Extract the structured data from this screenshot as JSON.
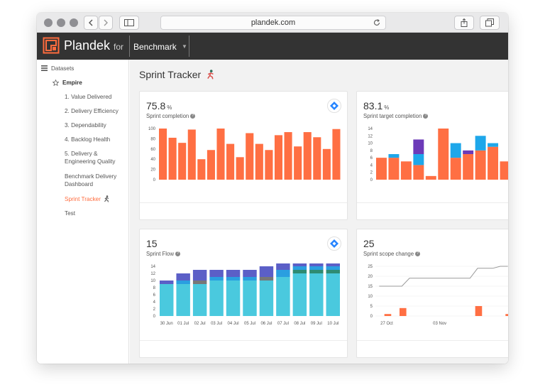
{
  "browser": {
    "url": "plandek.com"
  },
  "app": {
    "brand": "Plandek",
    "for": "for",
    "workspace": "Benchmark"
  },
  "sidebar": {
    "datasets_label": "Datasets",
    "group_label": "Empire",
    "items": [
      {
        "label": "1. Value Delivered",
        "active": false
      },
      {
        "label": "2. Delivery Efficiency",
        "active": false
      },
      {
        "label": "3. Dependability",
        "active": false
      },
      {
        "label": "4. Backlog Health",
        "active": false
      },
      {
        "label_line1": "5. Delivery &",
        "label_line2": "Engineering Quality",
        "active": false
      },
      {
        "label_line1": "Benchmark Delivery",
        "label_line2": "Dashboard",
        "active": false
      },
      {
        "label": "Sprint Tracker",
        "active": true
      },
      {
        "label": "Test",
        "active": false
      }
    ]
  },
  "page": {
    "title": "Sprint Tracker"
  },
  "colors": {
    "accent": "#ff6b3d",
    "bar": "#ff6f43",
    "sprint_flow_main": "#4ac9de",
    "sprint_flow_top": "#5b5fc7",
    "sprint_flow_mid": "#2a9fe0",
    "sprint_flow_green": "#2e8b72",
    "sprint_flow_gray": "#777777",
    "purple": "#6c3ab8",
    "blue": "#1ea7ea"
  },
  "cards": {
    "sprint_completion": {
      "value": "75.8",
      "unit": "%",
      "label": "Sprint completion"
    },
    "sprint_target": {
      "value": "83.1",
      "unit": "%",
      "label": "Sprint target completion"
    },
    "sprint_flow": {
      "value": "15",
      "label": "Sprint Flow"
    },
    "scope_change": {
      "value": "25",
      "label": "Sprint scope change"
    }
  },
  "chart_data": [
    {
      "type": "bar",
      "ylim": [
        0,
        100
      ],
      "yticks": [
        0,
        20,
        40,
        60,
        80,
        100
      ],
      "values": [
        100,
        82,
        72,
        98,
        40,
        58,
        100,
        70,
        44,
        91,
        70,
        58,
        87,
        93,
        65,
        93,
        83,
        60,
        99
      ]
    },
    {
      "type": "bar",
      "ylim": [
        0,
        14
      ],
      "yticks": [
        0,
        2,
        4,
        6,
        8,
        10,
        12,
        14
      ],
      "series": [
        {
          "name": "orange",
          "values": [
            6,
            6,
            5,
            4,
            1,
            14,
            6,
            7,
            8,
            9,
            5
          ]
        },
        {
          "name": "blue",
          "values": [
            0,
            1,
            0,
            3,
            0,
            0,
            4,
            0,
            4,
            1,
            0
          ]
        },
        {
          "name": "purple",
          "values": [
            0,
            0,
            0,
            4,
            0,
            0,
            0,
            1,
            0,
            0,
            0
          ]
        }
      ]
    },
    {
      "type": "bar",
      "categories": [
        "30 Jun",
        "01 Jul",
        "02 Jul",
        "03 Jul",
        "04 Jul",
        "05 Jul",
        "06 Jul",
        "07 Jul",
        "08 Jul",
        "09 Jul",
        "10 Jul"
      ],
      "ylim": [
        0,
        14
      ],
      "yticks": [
        0,
        2,
        4,
        6,
        8,
        10,
        12,
        14
      ],
      "series": [
        {
          "name": "cyan",
          "values": [
            9,
            9,
            9,
            10,
            10,
            10,
            10,
            11,
            12,
            12,
            12
          ]
        },
        {
          "name": "gray",
          "values": [
            0,
            0,
            1,
            0,
            0,
            0,
            1,
            0,
            0,
            0,
            0
          ]
        },
        {
          "name": "green",
          "values": [
            0,
            0,
            0,
            0,
            0,
            0,
            0,
            0,
            1,
            1,
            1
          ]
        },
        {
          "name": "blue",
          "values": [
            0,
            1,
            0,
            1,
            1,
            1,
            0,
            2,
            1,
            1,
            1
          ]
        },
        {
          "name": "indigo",
          "values": [
            1,
            2,
            3,
            2,
            2,
            2,
            3,
            2,
            1,
            1,
            1
          ]
        }
      ]
    },
    {
      "type": "line",
      "x": [
        "27 Oct",
        "03 Nov"
      ],
      "ylim": [
        0,
        25
      ],
      "yticks": [
        0,
        5,
        10,
        15,
        20,
        25
      ],
      "line_values": [
        15,
        15,
        15,
        15,
        19,
        19,
        19,
        19,
        19,
        19,
        19,
        19,
        19,
        24,
        24,
        24,
        25,
        25
      ],
      "bar_values": [
        0,
        1,
        0,
        4,
        0,
        0,
        0,
        0,
        0,
        0,
        0,
        0,
        0,
        5,
        0,
        0,
        0,
        1
      ]
    }
  ]
}
